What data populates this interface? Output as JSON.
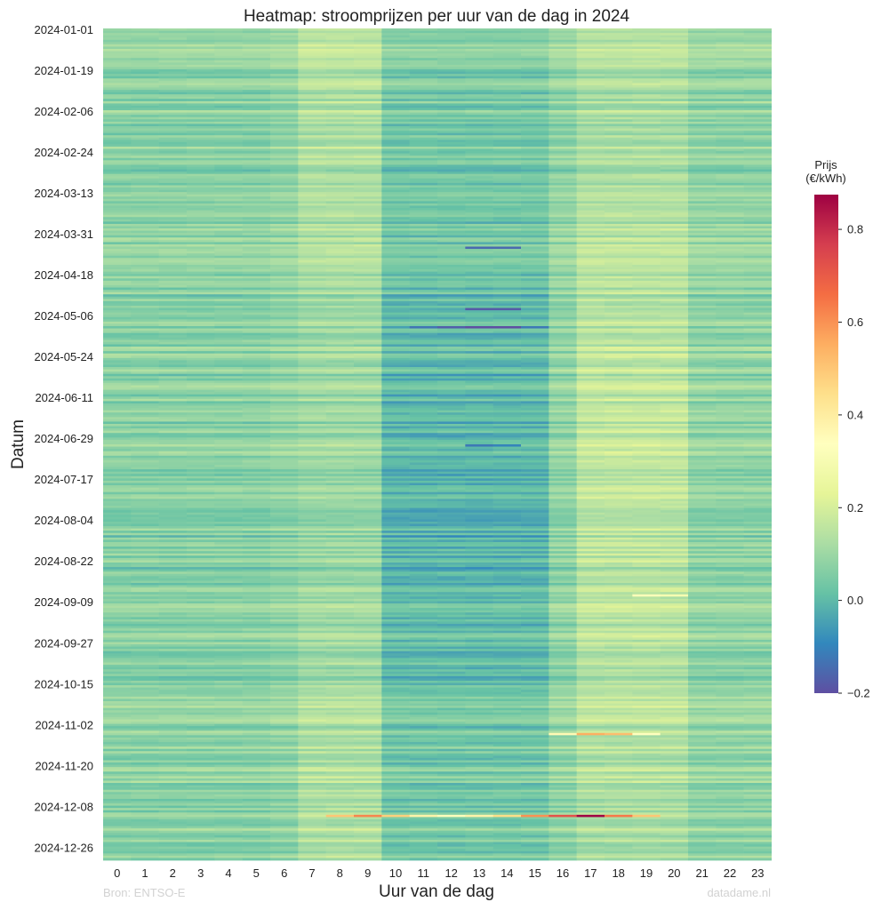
{
  "chart_data": {
    "type": "heatmap",
    "title": "Heatmap: stroomprijzen per uur van de dag in 2024",
    "xlabel": "Uur van de dag",
    "ylabel": "Datum",
    "x_categories": [
      "0",
      "1",
      "2",
      "3",
      "4",
      "5",
      "6",
      "7",
      "8",
      "9",
      "10",
      "11",
      "12",
      "13",
      "14",
      "15",
      "16",
      "17",
      "18",
      "19",
      "20",
      "21",
      "22",
      "23"
    ],
    "y_tick_labels": [
      "2024-01-01",
      "2024-01-19",
      "2024-02-06",
      "2024-02-24",
      "2024-03-13",
      "2024-03-31",
      "2024-04-18",
      "2024-05-06",
      "2024-05-24",
      "2024-06-11",
      "2024-06-29",
      "2024-07-17",
      "2024-08-04",
      "2024-08-22",
      "2024-09-09",
      "2024-09-27",
      "2024-10-15",
      "2024-11-02",
      "2024-11-20",
      "2024-12-08",
      "2024-12-26"
    ],
    "date_range": [
      "2024-01-01",
      "2024-12-31"
    ],
    "colorbar": {
      "title_line1": "Prijs",
      "title_line2": "(€/kWh)",
      "colormap": "Spectral_r",
      "range": [
        -0.2,
        0.875
      ],
      "ticks": [
        "0.8",
        "0.6",
        "0.4",
        "0.2",
        "0.0",
        "−0.2"
      ],
      "tick_values": [
        0.8,
        0.6,
        0.4,
        0.2,
        0.0,
        -0.2
      ]
    },
    "notable_values": [
      {
        "date": "2024-04-06",
        "hour": 13,
        "value": -0.15
      },
      {
        "date": "2024-04-06",
        "hour": 14,
        "value": -0.15
      },
      {
        "date": "2024-05-03",
        "hour": 13,
        "value": -0.18
      },
      {
        "date": "2024-05-03",
        "hour": 14,
        "value": -0.18
      },
      {
        "date": "2024-05-11",
        "hour": 11,
        "value": -0.13
      },
      {
        "date": "2024-05-11",
        "hour": 12,
        "value": -0.17
      },
      {
        "date": "2024-05-11",
        "hour": 13,
        "value": -0.2
      },
      {
        "date": "2024-05-11",
        "hour": 14,
        "value": -0.2
      },
      {
        "date": "2024-05-11",
        "hour": 15,
        "value": -0.12
      },
      {
        "date": "2024-07-02",
        "hour": 13,
        "value": -0.12
      },
      {
        "date": "2024-07-02",
        "hour": 14,
        "value": -0.1
      },
      {
        "date": "2024-09-06",
        "hour": 19,
        "value": 0.32
      },
      {
        "date": "2024-09-06",
        "hour": 20,
        "value": 0.3
      },
      {
        "date": "2024-11-06",
        "hour": 16,
        "value": 0.36
      },
      {
        "date": "2024-11-06",
        "hour": 17,
        "value": 0.55
      },
      {
        "date": "2024-11-06",
        "hour": 18,
        "value": 0.52
      },
      {
        "date": "2024-11-06",
        "hour": 19,
        "value": 0.34
      },
      {
        "date": "2024-12-12",
        "hour": 8,
        "value": 0.5
      },
      {
        "date": "2024-12-12",
        "hour": 9,
        "value": 0.62
      },
      {
        "date": "2024-12-12",
        "hour": 10,
        "value": 0.48
      },
      {
        "date": "2024-12-12",
        "hour": 11,
        "value": 0.38
      },
      {
        "date": "2024-12-12",
        "hour": 12,
        "value": 0.33
      },
      {
        "date": "2024-12-12",
        "hour": 13,
        "value": 0.38
      },
      {
        "date": "2024-12-12",
        "hour": 14,
        "value": 0.45
      },
      {
        "date": "2024-12-12",
        "hour": 15,
        "value": 0.6
      },
      {
        "date": "2024-12-12",
        "hour": 16,
        "value": 0.72
      },
      {
        "date": "2024-12-12",
        "hour": 17,
        "value": 0.87
      },
      {
        "date": "2024-12-12",
        "hour": 18,
        "value": 0.64
      },
      {
        "date": "2024-12-12",
        "hour": 19,
        "value": 0.5
      }
    ]
  },
  "credits": {
    "source": "Bron: ENTSO-E",
    "brand": "datadame.nl"
  }
}
